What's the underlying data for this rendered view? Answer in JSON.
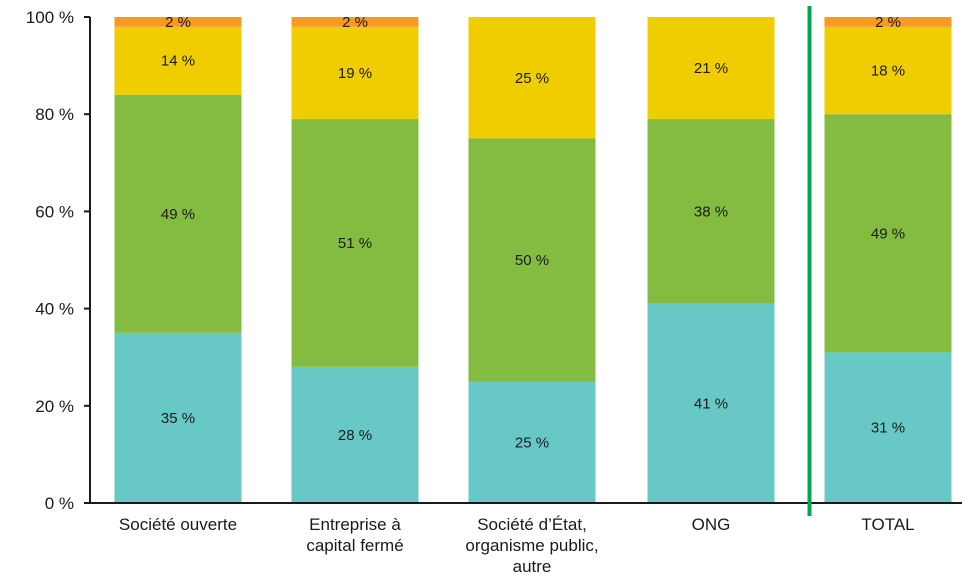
{
  "chart_data": {
    "type": "bar",
    "stacked": true,
    "ylim": [
      0,
      100
    ],
    "yticks": [
      "0 %",
      "20 %",
      "40 %",
      "60 %",
      "80 %",
      "100 %"
    ],
    "categories": [
      [
        "Société ouverte"
      ],
      [
        "Entreprise à",
        "capital fermé"
      ],
      [
        "Société d’État,",
        "organisme public,",
        "autre"
      ],
      [
        "ONG"
      ],
      [
        "TOTAL"
      ]
    ],
    "series": [
      {
        "color": "#68c8c6",
        "values": [
          35,
          28,
          25,
          41,
          31
        ],
        "labels": [
          "35 %",
          "28 %",
          "25 %",
          "41 %",
          "31 %"
        ]
      },
      {
        "color": "#84bc41",
        "values": [
          49,
          51,
          50,
          38,
          49
        ],
        "labels": [
          "49 %",
          "51 %",
          "50 %",
          "38 %",
          "49 %"
        ]
      },
      {
        "color": "#f0cd00",
        "values": [
          14,
          19,
          25,
          21,
          18
        ],
        "labels": [
          "14 %",
          "19 %",
          "25 %",
          "21 %",
          "18 %"
        ]
      },
      {
        "color": "#f59a22",
        "values": [
          2,
          2,
          0,
          0,
          2
        ],
        "labels": [
          "2 %",
          "2 %",
          "",
          "",
          "2 %"
        ]
      }
    ],
    "separator_color": "#00a651",
    "separator_after_category": 3
  }
}
